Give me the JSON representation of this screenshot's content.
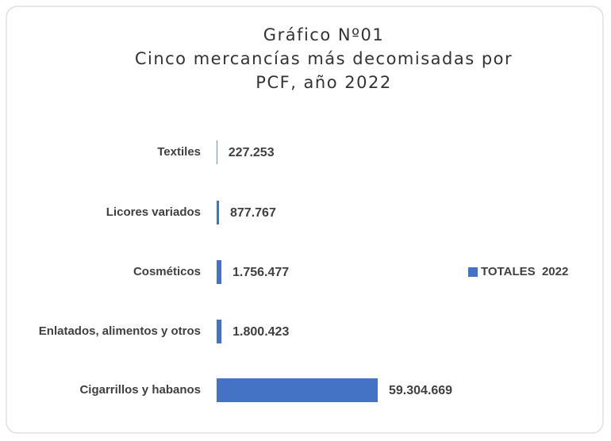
{
  "chart_data": {
    "type": "barh",
    "title": [
      "Gráfico Nº01",
      "Cinco mercancías más decomisadas por",
      "PCF, año 2022"
    ],
    "categories": [
      "Textiles",
      "Licores variados",
      "Cosméticos",
      "Enlatados, alimentos y otros",
      "Cigarrillos y habanos"
    ],
    "series": [
      {
        "name": "TOTALES  2022",
        "color": "#4472c4",
        "values": [
          227253,
          877767,
          1756477,
          1800423,
          59304669
        ],
        "value_labels": [
          "227.253",
          "877.767",
          "1.756.477",
          "1.800.423",
          "59.304.669"
        ]
      }
    ],
    "legend": "right"
  }
}
